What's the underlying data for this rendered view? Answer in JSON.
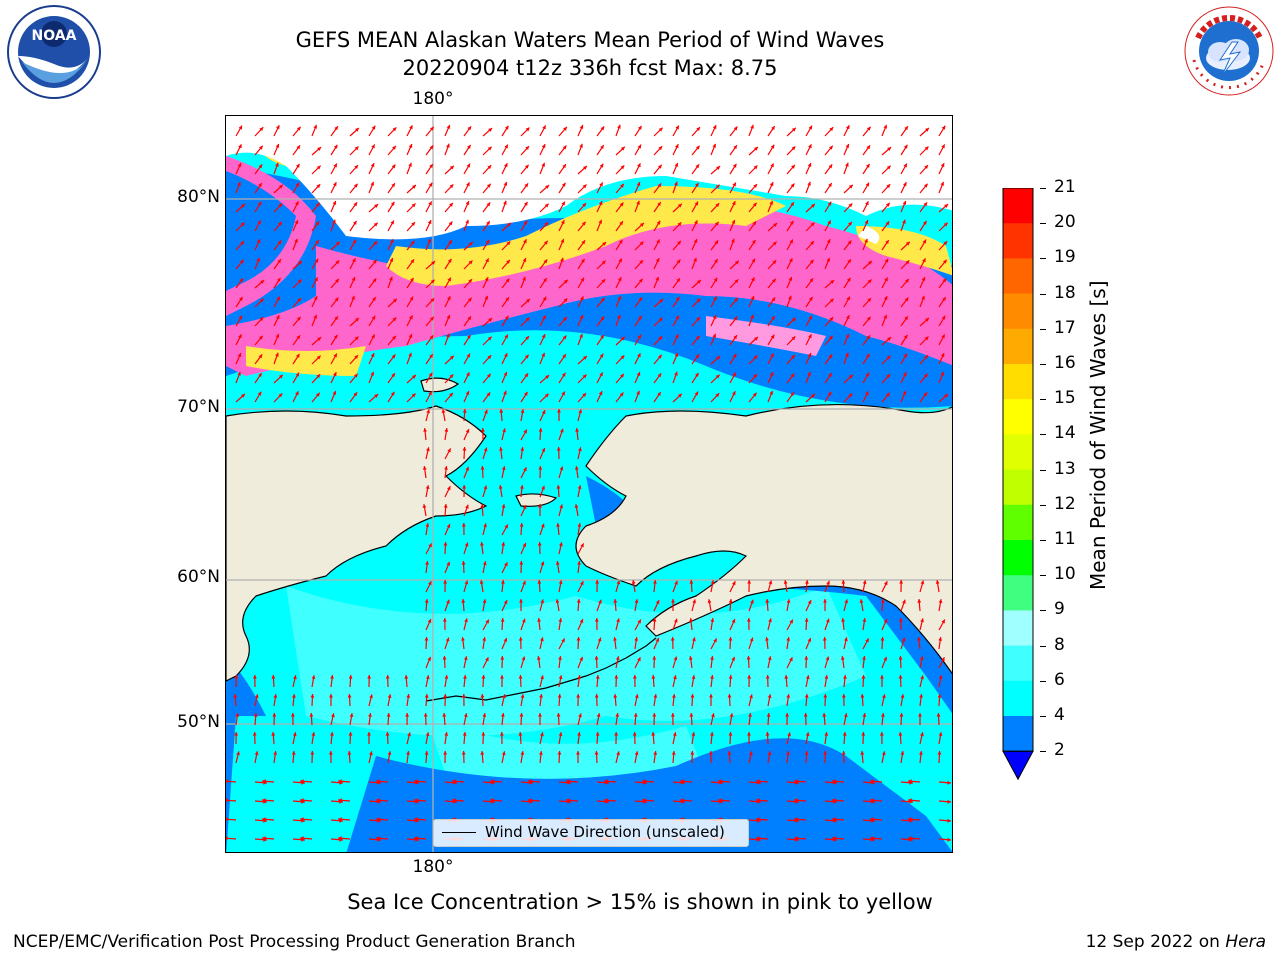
{
  "header": {
    "title_line1": "GEFS MEAN Alaskan Waters Mean Period of Wind Waves",
    "title_line2": "20220904 t12z 336h fcst   Max: 8.75"
  },
  "logos": {
    "left": {
      "name": "noaa-logo",
      "text": "NOAA",
      "ring_text": "NATIONAL OCEANIC AND ATMOSPHERIC ADMINISTRATION · U.S. DEPARTMENT OF COMMERCE"
    },
    "right": {
      "name": "nws-logo",
      "ring_text": "NATIONAL WEATHER SERVICE"
    }
  },
  "map": {
    "longitude_labels": {
      "top": "180°",
      "bottom": "180°"
    },
    "latitude_labels": [
      "80°N",
      "70°N",
      "60°N",
      "50°N"
    ],
    "legend_label": "Wind Wave Direction (unscaled)",
    "colors": {
      "land": "#efecdc",
      "ocean_low": "#0080ff",
      "ocean_mid": "#00ffff",
      "ocean_high": "#40ffff",
      "ice_low": "#ff66cc",
      "ice_high": "#ffe84a",
      "arrows": "#ff0000",
      "grid": "#b0b0b0"
    }
  },
  "colorbar": {
    "label": "Mean Period of Wind Waves [s]",
    "ticks": [
      "21",
      "20",
      "19",
      "18",
      "17",
      "16",
      "15",
      "14",
      "13",
      "12",
      "11",
      "10",
      "9",
      "8",
      "6",
      "4",
      "2"
    ],
    "bins": [
      {
        "from": 20,
        "to": 21,
        "color": "#ff0000"
      },
      {
        "from": 19,
        "to": 20,
        "color": "#ff3300"
      },
      {
        "from": 18,
        "to": 19,
        "color": "#ff6600"
      },
      {
        "from": 17,
        "to": 18,
        "color": "#ff8c00"
      },
      {
        "from": 16,
        "to": 17,
        "color": "#ffaa00"
      },
      {
        "from": 15,
        "to": 16,
        "color": "#ffdd00"
      },
      {
        "from": 14,
        "to": 15,
        "color": "#ffff00"
      },
      {
        "from": 13,
        "to": 14,
        "color": "#e0ff00"
      },
      {
        "from": 12,
        "to": 13,
        "color": "#c0ff00"
      },
      {
        "from": 11,
        "to": 12,
        "color": "#60ff00"
      },
      {
        "from": 10,
        "to": 11,
        "color": "#00ff00"
      },
      {
        "from": 9,
        "to": 10,
        "color": "#40ff80"
      },
      {
        "from": 8,
        "to": 9,
        "color": "#a0ffff"
      },
      {
        "from": 6,
        "to": 8,
        "color": "#40ffff"
      },
      {
        "from": 4,
        "to": 6,
        "color": "#00ffff"
      },
      {
        "from": 2,
        "to": 4,
        "color": "#0080ff"
      }
    ],
    "extend_color": "#0000ff"
  },
  "caption": "Sea Ice Concentration > 15% is shown in pink to yellow",
  "footer": {
    "left": "NCEP/EMC/Verification Post Processing Product Generation Branch",
    "right_date": "12 Sep 2022 on ",
    "right_machine": "Hera"
  }
}
